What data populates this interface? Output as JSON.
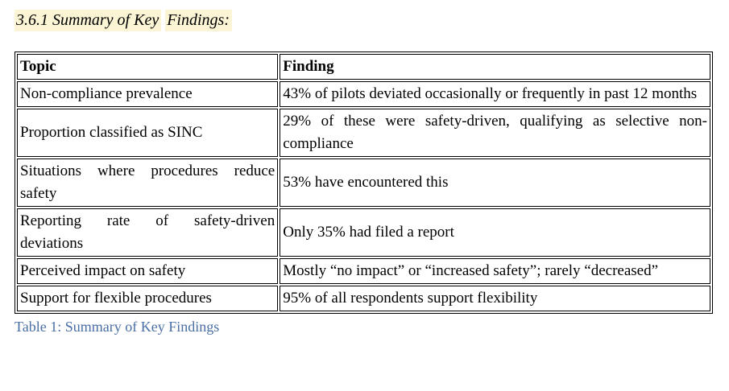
{
  "heading": {
    "part1": "3.6.1 Summary of Key",
    "part2": "Findings:"
  },
  "table": {
    "headers": [
      "Topic",
      "Finding"
    ],
    "rows": [
      {
        "topic": "Non-compliance prevalence",
        "finding": "43% of pilots deviated occasionally or frequently in past 12 months"
      },
      {
        "topic": "Proportion classified as SINC",
        "finding": "29% of these were safety-driven, qualifying as selective non-compliance"
      },
      {
        "topic": "Situations where procedures reduce safety",
        "finding": "53% have encountered this"
      },
      {
        "topic": "Reporting rate of safety-driven deviations",
        "finding": "Only 35% had filed a report"
      },
      {
        "topic": "Perceived impact on safety",
        "finding": "Mostly “no impact” or “increased safety”; rarely “decreased”"
      },
      {
        "topic": "Support for flexible procedures",
        "finding": "95% of all respondents support flexibility"
      }
    ]
  },
  "caption": "Table 1: Summary of Key Findings",
  "colors": {
    "highlight": "#fbf5d5",
    "caption_text": "#4a6fa5",
    "table_border": "#000000",
    "text": "#000000",
    "background": "#ffffff"
  }
}
